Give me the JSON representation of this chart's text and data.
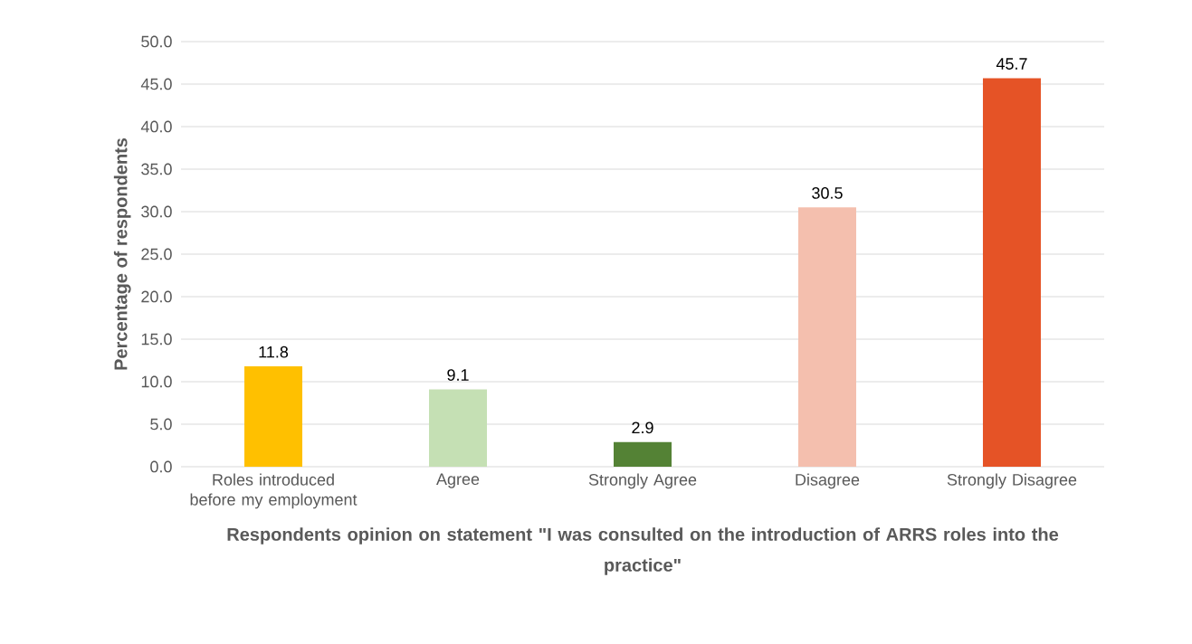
{
  "chart_data": {
    "type": "bar",
    "xlabel": "Respondents opinion on statement \"I was consulted on the introduction of ARRS roles into the practice\"",
    "ylabel": "Percentage of respondents",
    "categories": [
      "Roles introduced before my employment",
      "Agree",
      "Strongly Agree",
      "Disagree",
      "Strongly Disagree"
    ],
    "values": [
      11.8,
      9.1,
      2.9,
      30.5,
      45.7
    ],
    "colors": [
      "#ffc000",
      "#c5e0b4",
      "#548235",
      "#f4bfae",
      "#e55326"
    ],
    "ylim": [
      0,
      50
    ],
    "yticks": [
      {
        "value": 0,
        "label": "0.0"
      },
      {
        "value": 5,
        "label": "5.0"
      },
      {
        "value": 10,
        "label": "10.0"
      },
      {
        "value": 15,
        "label": "15.0"
      },
      {
        "value": 20,
        "label": "20.0"
      },
      {
        "value": 25,
        "label": "25.0"
      },
      {
        "value": 30,
        "label": "30.0"
      },
      {
        "value": 35,
        "label": "35.0"
      },
      {
        "value": 40,
        "label": "40.0"
      },
      {
        "value": 45,
        "label": "45.0"
      },
      {
        "value": 50,
        "label": "50.0"
      }
    ],
    "grid": "y",
    "data_labels": true
  }
}
